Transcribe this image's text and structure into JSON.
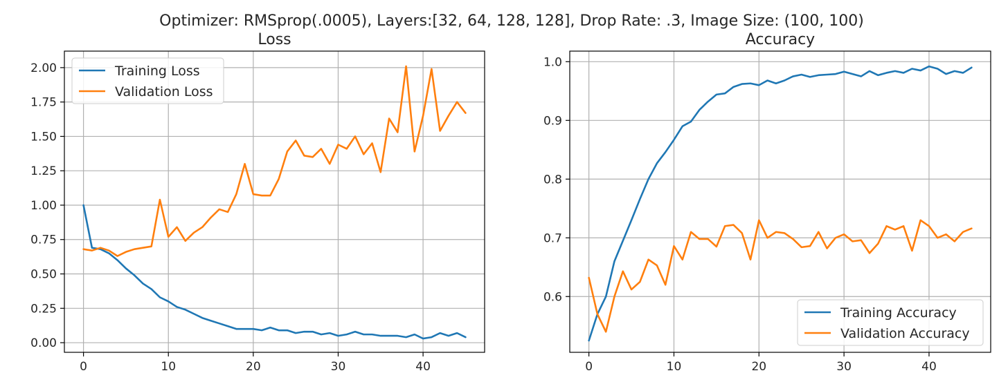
{
  "suptitle": "Optimizer: RMSprop(.0005), Layers:[32, 64, 128, 128], Drop Rate: .3, Image Size: (100, 100)",
  "colors": {
    "blue": "#1f77b4",
    "orange": "#ff7f0e"
  },
  "chart_data": [
    {
      "id": "loss",
      "type": "line",
      "title": "Loss",
      "xlabel": "",
      "ylabel": "",
      "grid": true,
      "legend": "upper-left",
      "xlim": [
        -2.25,
        47.25
      ],
      "ylim": [
        -0.07,
        2.12
      ],
      "xticks": [
        0,
        10,
        20,
        30,
        40
      ],
      "xtick_labels": [
        "0",
        "10",
        "20",
        "30",
        "40"
      ],
      "yticks": [
        0,
        0.25,
        0.5,
        0.75,
        1.0,
        1.25,
        1.5,
        1.75,
        2.0
      ],
      "ytick_labels": [
        "0.00",
        "0.25",
        "0.50",
        "0.75",
        "1.00",
        "1.25",
        "1.50",
        "1.75",
        "2.00"
      ],
      "x": [
        0,
        1,
        2,
        3,
        4,
        5,
        6,
        7,
        8,
        9,
        10,
        11,
        12,
        13,
        14,
        15,
        16,
        17,
        18,
        19,
        20,
        21,
        22,
        23,
        24,
        25,
        26,
        27,
        28,
        29,
        30,
        31,
        32,
        33,
        34,
        35,
        36,
        37,
        38,
        39,
        40,
        41,
        42,
        43,
        44,
        45
      ],
      "series": [
        {
          "name": "Training Loss",
          "color": "#1f77b4",
          "values": [
            1.0,
            0.69,
            0.68,
            0.65,
            0.6,
            0.54,
            0.49,
            0.43,
            0.39,
            0.33,
            0.3,
            0.26,
            0.24,
            0.21,
            0.18,
            0.16,
            0.14,
            0.12,
            0.1,
            0.1,
            0.1,
            0.09,
            0.11,
            0.09,
            0.09,
            0.07,
            0.08,
            0.08,
            0.06,
            0.07,
            0.05,
            0.06,
            0.08,
            0.06,
            0.06,
            0.05,
            0.05,
            0.05,
            0.04,
            0.06,
            0.03,
            0.04,
            0.07,
            0.05,
            0.07,
            0.04
          ]
        },
        {
          "name": "Validation Loss",
          "color": "#ff7f0e",
          "values": [
            0.68,
            0.67,
            0.69,
            0.67,
            0.63,
            0.66,
            0.68,
            0.69,
            0.7,
            1.04,
            0.77,
            0.84,
            0.74,
            0.8,
            0.84,
            0.91,
            0.97,
            0.95,
            1.08,
            1.3,
            1.08,
            1.07,
            1.07,
            1.19,
            1.39,
            1.47,
            1.36,
            1.35,
            1.41,
            1.3,
            1.44,
            1.41,
            1.5,
            1.37,
            1.45,
            1.24,
            1.63,
            1.53,
            2.01,
            1.39,
            1.65,
            1.99,
            1.54,
            1.65,
            1.75,
            1.67
          ]
        }
      ]
    },
    {
      "id": "accuracy",
      "type": "line",
      "title": "Accuracy",
      "xlabel": "",
      "ylabel": "",
      "grid": true,
      "legend": "lower-right",
      "xlim": [
        -2.25,
        47.25
      ],
      "ylim": [
        0.505,
        1.018
      ],
      "xticks": [
        0,
        10,
        20,
        30,
        40
      ],
      "xtick_labels": [
        "0",
        "10",
        "20",
        "30",
        "40"
      ],
      "yticks": [
        0.6,
        0.7,
        0.8,
        0.9,
        1.0
      ],
      "ytick_labels": [
        "0.6",
        "0.7",
        "0.8",
        "0.9",
        "1.0"
      ],
      "x": [
        0,
        1,
        2,
        3,
        4,
        5,
        6,
        7,
        8,
        9,
        10,
        11,
        12,
        13,
        14,
        15,
        16,
        17,
        18,
        19,
        20,
        21,
        22,
        23,
        24,
        25,
        26,
        27,
        28,
        29,
        30,
        31,
        32,
        33,
        34,
        35,
        36,
        37,
        38,
        39,
        40,
        41,
        42,
        43,
        44,
        45
      ],
      "series": [
        {
          "name": "Training Accuracy",
          "color": "#1f77b4",
          "values": [
            0.525,
            0.57,
            0.6,
            0.66,
            0.695,
            0.73,
            0.766,
            0.8,
            0.827,
            0.846,
            0.867,
            0.89,
            0.898,
            0.918,
            0.932,
            0.944,
            0.946,
            0.957,
            0.962,
            0.963,
            0.96,
            0.968,
            0.963,
            0.968,
            0.975,
            0.978,
            0.974,
            0.977,
            0.978,
            0.979,
            0.983,
            0.979,
            0.975,
            0.984,
            0.977,
            0.981,
            0.984,
            0.981,
            0.988,
            0.985,
            0.992,
            0.988,
            0.979,
            0.984,
            0.981,
            0.99
          ]
        },
        {
          "name": "Validation Accuracy",
          "color": "#ff7f0e",
          "values": [
            0.632,
            0.57,
            0.54,
            0.6,
            0.643,
            0.612,
            0.625,
            0.663,
            0.653,
            0.62,
            0.686,
            0.663,
            0.71,
            0.698,
            0.698,
            0.685,
            0.72,
            0.722,
            0.708,
            0.663,
            0.73,
            0.7,
            0.71,
            0.708,
            0.698,
            0.684,
            0.686,
            0.71,
            0.682,
            0.7,
            0.706,
            0.694,
            0.696,
            0.674,
            0.69,
            0.72,
            0.714,
            0.72,
            0.678,
            0.73,
            0.72,
            0.7,
            0.706,
            0.694,
            0.71,
            0.716
          ]
        }
      ]
    }
  ]
}
